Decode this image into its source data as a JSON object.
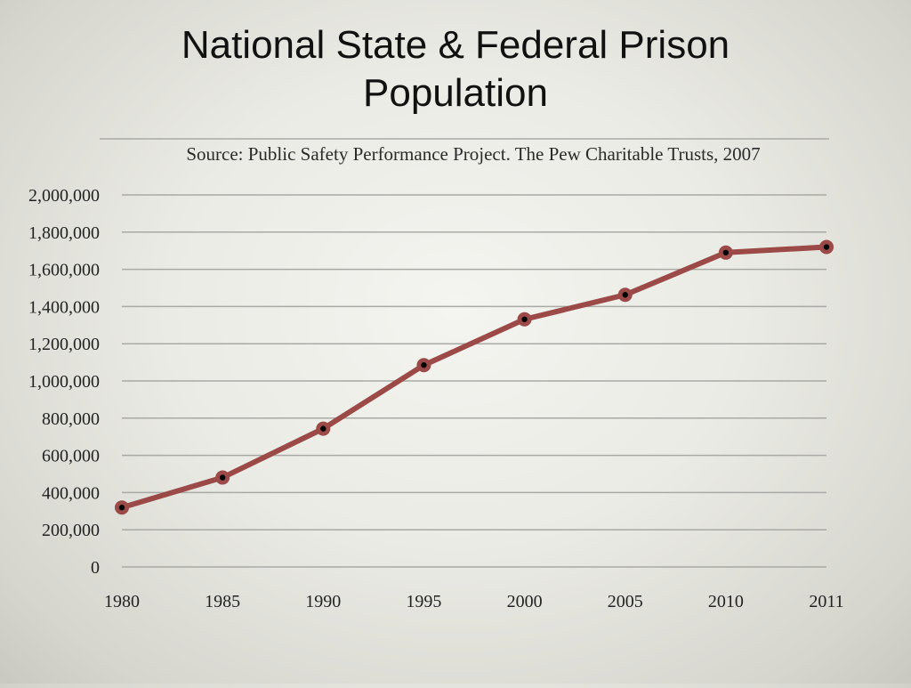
{
  "slide": {
    "title_line1": "National State & Federal Prison",
    "title_line2": "Population"
  },
  "chart_data": {
    "type": "line",
    "source": "Source: Public Safety Performance Project.  The Pew Charitable Trusts, 2007",
    "categories": [
      "1980",
      "1985",
      "1990",
      "1995",
      "2000",
      "2005",
      "2010",
      "2011"
    ],
    "series": [
      {
        "values": [
          319598,
          480568,
          743382,
          1085022,
          1331278,
          1462866,
          1690000,
          1720000
        ]
      }
    ],
    "yticks": [
      "0",
      "200,000",
      "400,000",
      "600,000",
      "800,000",
      "1,000,000",
      "1,200,000",
      "1,400,000",
      "1,600,000",
      "1,800,000",
      "2,000,000"
    ],
    "ylim": [
      0,
      2000000
    ],
    "grid": true,
    "colors": {
      "line": "#9b4a48",
      "marker_outer": "#9b4a48",
      "marker_inner": "#000000",
      "grid": "#a9a9a5",
      "text": "#222222"
    }
  }
}
